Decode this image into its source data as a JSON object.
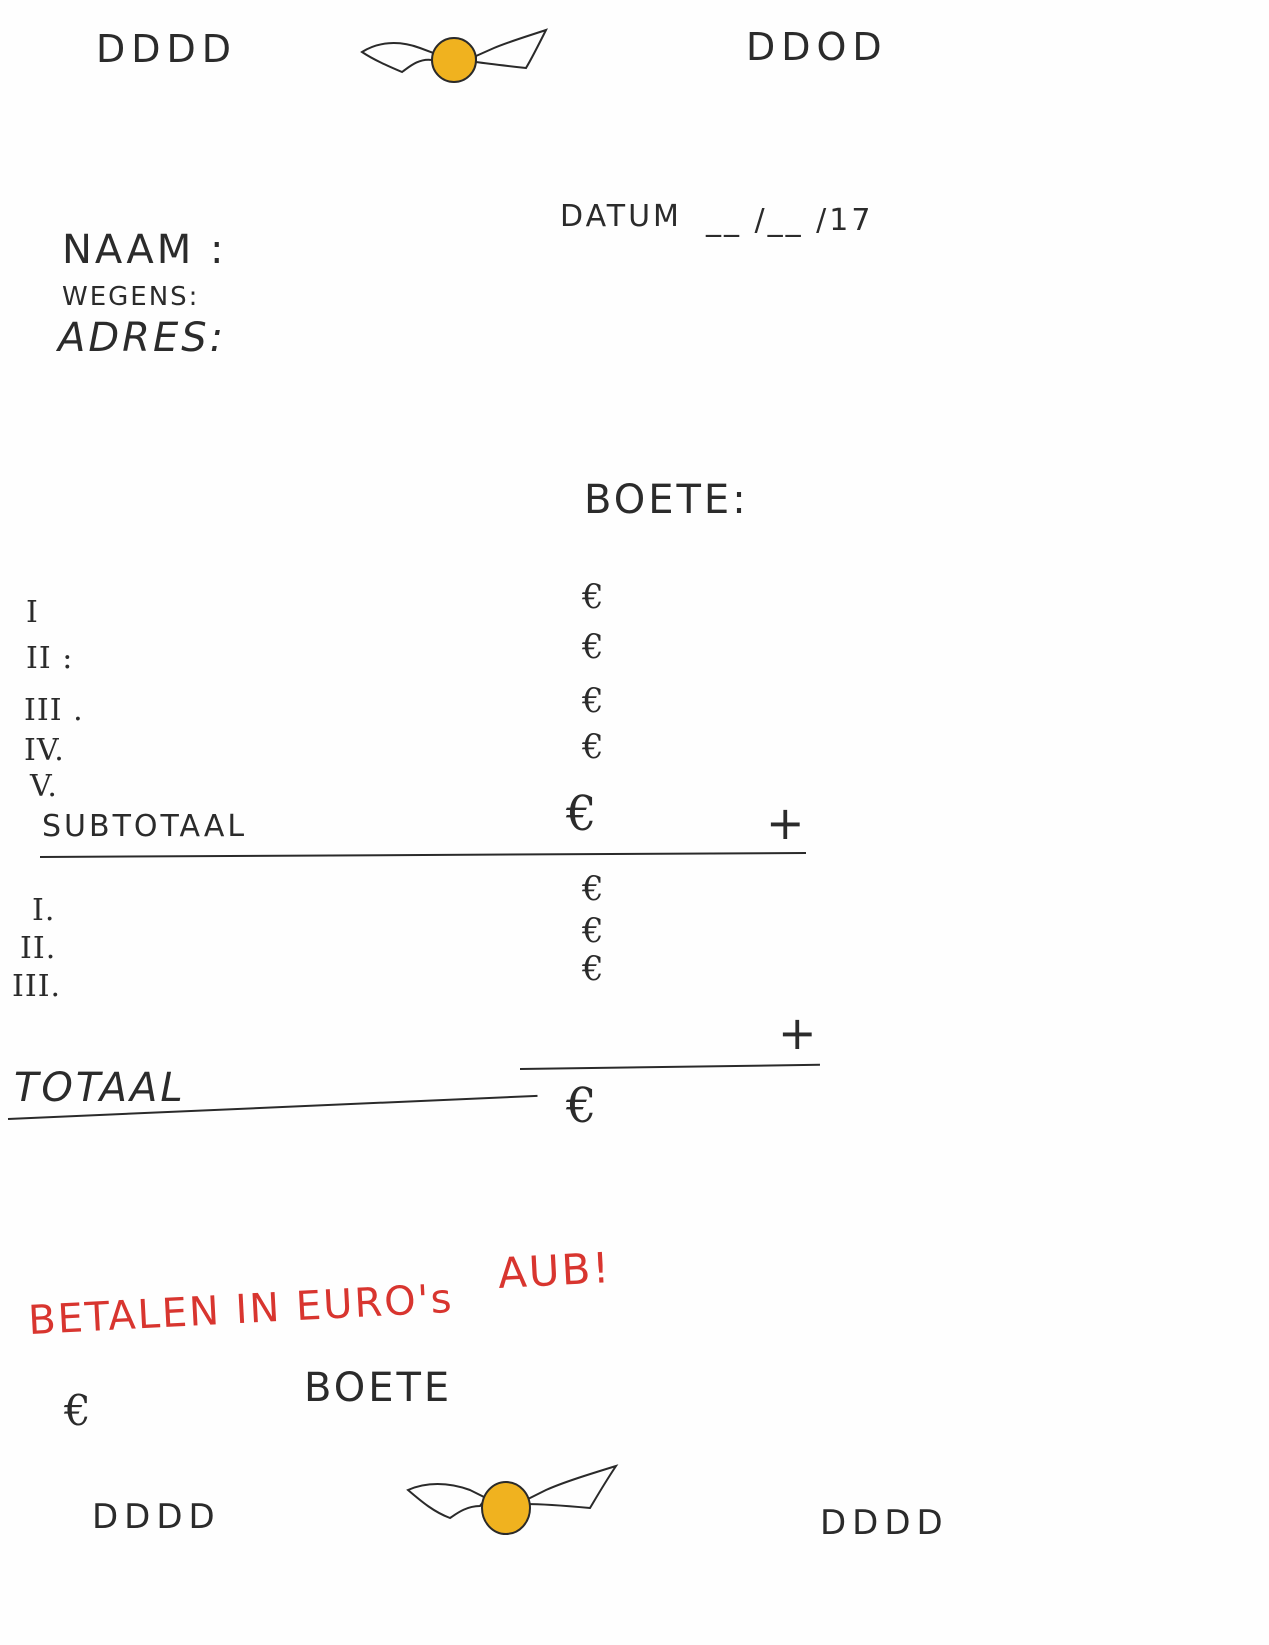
{
  "header": {
    "corner_left": "DDDD",
    "corner_right": "DDOD"
  },
  "form": {
    "datum_label": "DATUM",
    "datum_blank": "__ /__ /17",
    "naam_label": "NAAM :",
    "wegens_label": "WEGENS:",
    "adres_label": "ADRES:",
    "boete_heading": "BOETE:"
  },
  "fines_section1": {
    "rows": [
      {
        "numeral": "I",
        "euro": "€"
      },
      {
        "numeral": "II :",
        "euro": "€"
      },
      {
        "numeral": "III .",
        "euro": "€"
      },
      {
        "numeral": "IV.",
        "euro": "€"
      },
      {
        "numeral": "V.",
        "euro": "€"
      }
    ],
    "subtotal_label": "SUBTOTAAL",
    "subtotal_euro": "€",
    "plus": "+"
  },
  "fines_section2": {
    "rows": [
      {
        "numeral": "I.",
        "euro": "€"
      },
      {
        "numeral": "II.",
        "euro": "€"
      },
      {
        "numeral": "III.",
        "euro": "€"
      }
    ],
    "plus": "+"
  },
  "total": {
    "label": "TOTAAL",
    "euro": "€"
  },
  "notice": {
    "text": "BETALEN IN EURO's",
    "aub": "AUB!"
  },
  "stub": {
    "euro": "€",
    "label": "BOETE"
  },
  "footer": {
    "corner_left": "DDDD",
    "corner_right": "DDDD"
  },
  "colors": {
    "ink": "#2a2a2a",
    "red": "#d8352f",
    "snitch_gold": "#f0b21f"
  },
  "icons": {
    "header_emblem": "golden-snitch-icon",
    "footer_emblem": "golden-snitch-icon"
  }
}
